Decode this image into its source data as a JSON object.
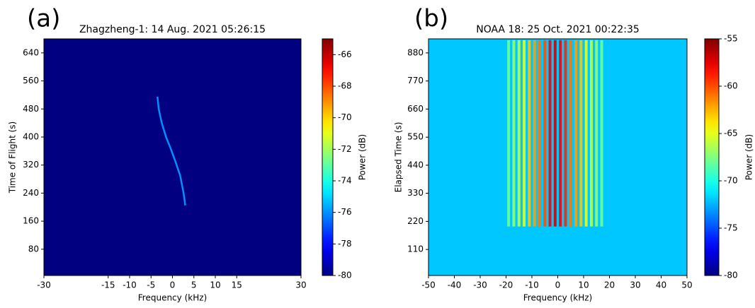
{
  "chart_data": [
    {
      "type": "spectrogram",
      "panel_label": "(a)",
      "title": "Zhagzheng-1: 14 Aug. 2021 05:26:15",
      "xlabel": "Frequency (kHz)",
      "ylabel": "Time of Flight (s)",
      "xlim": [
        -30,
        30
      ],
      "xticks": [
        -30,
        -15,
        -10,
        -5,
        0,
        5,
        10,
        15,
        30
      ],
      "ylim": [
        5,
        680
      ],
      "yticks": [
        80,
        160,
        240,
        320,
        400,
        480,
        560,
        640
      ],
      "background": -80,
      "trace": {
        "x": [
          -3.5,
          -3.2,
          -2.5,
          -1.5,
          -0.5,
          0.7,
          1.8,
          2.6,
          3.0
        ],
        "y": [
          515,
          480,
          440,
          400,
          370,
          330,
          290,
          240,
          205
        ],
        "value": -76
      },
      "colorbar": {
        "label": "Power (dB)",
        "colormap": "jet",
        "lim": [
          -80,
          -65
        ],
        "ticks": [
          -66,
          -68,
          -70,
          -72,
          -74,
          -76,
          -78,
          -80
        ]
      }
    },
    {
      "type": "spectrogram",
      "panel_label": "(b)",
      "title": "NOAA 18: 25 Oct. 2021 00:22:35",
      "xlabel": "Frequency (kHz)",
      "ylabel": "Elapsed Time (s)",
      "xlim": [
        -50,
        50
      ],
      "xticks": [
        -50,
        -40,
        -30,
        -20,
        -10,
        0,
        10,
        20,
        30,
        40,
        50
      ],
      "ylim": [
        8,
        935
      ],
      "yticks": [
        110,
        220,
        330,
        440,
        550,
        660,
        770,
        880
      ],
      "background": -72,
      "stripes": {
        "x": [
          -19,
          -17,
          -15,
          -13,
          -11,
          -9,
          -7,
          -5,
          -3,
          -1,
          1,
          3,
          5,
          7,
          9,
          11,
          13,
          15,
          17
        ],
        "values": [
          -68,
          -67,
          -66,
          -65,
          -63,
          -62,
          -61,
          -60,
          -58,
          -57,
          -58,
          -59,
          -61,
          -62,
          -63,
          -65,
          -66,
          -67,
          -68
        ],
        "ylim": [
          200,
          930
        ]
      },
      "colorbar": {
        "label": "Power (dB)",
        "colormap": "jet",
        "lim": [
          -80,
          -55
        ],
        "ticks": [
          -55,
          -60,
          -65,
          -70,
          -75,
          -80
        ]
      }
    }
  ]
}
